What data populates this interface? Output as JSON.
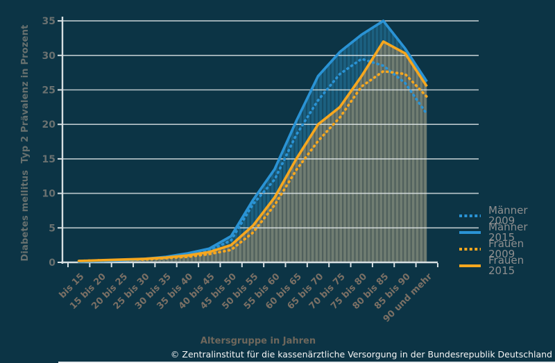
{
  "chart_data": {
    "type": "line",
    "categories": [
      "bis 15",
      "15 bis 20",
      "20 bis 25",
      "25 bis 30",
      "30 bis 35",
      "35 bis 40",
      "40 bis 45",
      "45 bis 50",
      "50 bis 55",
      "55 bis 60",
      "60 bis 65",
      "65 bis 70",
      "70 bis 75",
      "75 bis 80",
      "80 bis 85",
      "85 bis 90",
      "90 und mehr"
    ],
    "series": [
      {
        "name": "Männer 2009",
        "style": "dotted",
        "color": "#2a93d5",
        "values": [
          0.1,
          0.2,
          0.3,
          0.4,
          0.6,
          1.0,
          1.7,
          3.2,
          8.4,
          12.0,
          18.5,
          23.5,
          27.3,
          29.5,
          28.5,
          26.0,
          21.5
        ]
      },
      {
        "name": "Männer 2015",
        "style": "solid",
        "color": "#2a93d5",
        "area_fill": "#1c6080",
        "values": [
          0.1,
          0.2,
          0.3,
          0.5,
          0.8,
          1.3,
          2.0,
          3.8,
          9.0,
          13.5,
          20.5,
          27.0,
          30.5,
          33.0,
          35.0,
          31.0,
          26.2
        ]
      },
      {
        "name": "Frauen 2009",
        "style": "dotted",
        "color": "#f6a71f",
        "values": [
          0.2,
          0.3,
          0.3,
          0.4,
          0.6,
          0.8,
          1.2,
          1.8,
          4.3,
          8.3,
          13.4,
          17.6,
          21.0,
          25.5,
          27.7,
          27.3,
          24.0
        ]
      },
      {
        "name": "Frauen 2015",
        "style": "solid",
        "color": "#f6a71f",
        "area_fill": "#707d72",
        "values": [
          0.2,
          0.3,
          0.4,
          0.5,
          0.7,
          1.0,
          1.5,
          2.5,
          5.3,
          9.4,
          15.0,
          20.0,
          22.5,
          27.0,
          32.0,
          30.3,
          25.5
        ]
      }
    ],
    "xlabel": "Altersgruppe in Jahren",
    "ylabel": "Diabetes mellitus  Typ 2 Prävalenz in Prozent",
    "ylim": [
      0,
      35
    ],
    "yticks": [
      0,
      5,
      10,
      15,
      20,
      25,
      30,
      35
    ],
    "grid": "horizontal",
    "legend_position": "right"
  },
  "footer": {
    "copyright": "© Zentralinstitut für die kassenärztliche Versorgung in der Bundesrepublik Deutschland"
  },
  "colors": {
    "background": "#0c3445",
    "gridline": "#e8eef0",
    "axis": "#d7dfe2",
    "hatch": "rgba(4,28,40,0.30)",
    "ytick_text": "#6a7170",
    "xtick_text": "#7b7065",
    "ytitle_text": "#68716f",
    "xtitle_text": "#6e675c",
    "legend_text": "#8f8f8f",
    "footer_text": "#f5f5f5"
  }
}
